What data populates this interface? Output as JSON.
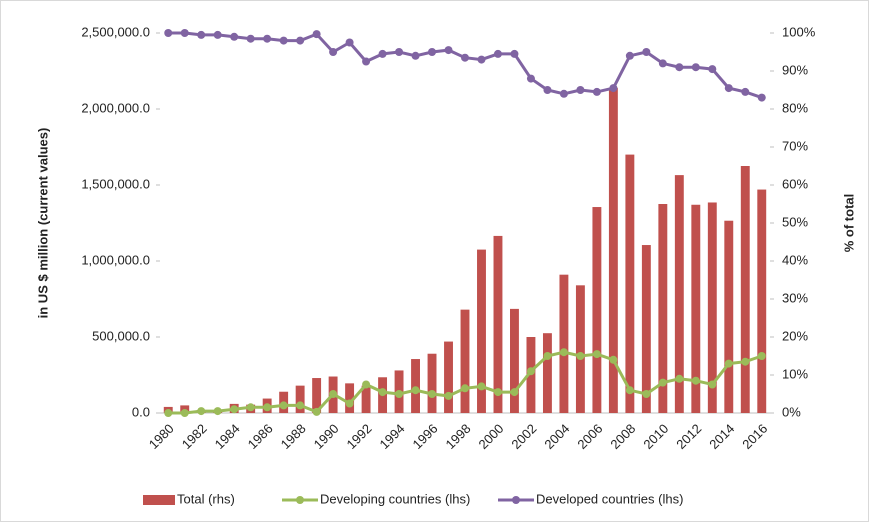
{
  "chart_data": {
    "type": "bar-line",
    "ylabel": "in US $ million (current values)",
    "y2label": "% of total",
    "categories": [
      "1980",
      null,
      "1982",
      null,
      "1984",
      null,
      "1986",
      null,
      "1988",
      null,
      "1990",
      null,
      "1992",
      null,
      "1994",
      null,
      "1996",
      null,
      "1998",
      null,
      "2000",
      null,
      "2002",
      null,
      "2004",
      null,
      "2006",
      null,
      "2008",
      null,
      "2010",
      null,
      "2012",
      null,
      "2014",
      null,
      "2016"
    ],
    "ylim": [
      0,
      2500000
    ],
    "yticks": [
      {
        "value": 0,
        "label": "0.0"
      },
      {
        "value": 500000,
        "label": "500,000.0"
      },
      {
        "value": 1000000,
        "label": "1,000,000.0"
      },
      {
        "value": 1500000,
        "label": "1,500,000.0"
      },
      {
        "value": 2000000,
        "label": "2,000,000.0"
      },
      {
        "value": 2500000,
        "label": "2,500,000.0"
      }
    ],
    "y2lim": [
      0,
      100
    ],
    "y2ticks": [
      {
        "value": 0,
        "label": "0%"
      },
      {
        "value": 10,
        "label": "10%"
      },
      {
        "value": 20,
        "label": "20%"
      },
      {
        "value": 30,
        "label": "30%"
      },
      {
        "value": 40,
        "label": "40%"
      },
      {
        "value": 50,
        "label": "50%"
      },
      {
        "value": 60,
        "label": "60%"
      },
      {
        "value": 70,
        "label": "70%"
      },
      {
        "value": 80,
        "label": "80%"
      },
      {
        "value": 90,
        "label": "90%"
      },
      {
        "value": 100,
        "label": "100%"
      }
    ],
    "legend": "bottom",
    "series": [
      {
        "name": "Total (rhs)",
        "kind": "bar",
        "color": "#c0504d",
        "values": [
          40000,
          50000,
          20000,
          20000,
          60000,
          55000,
          95000,
          140000,
          180000,
          230000,
          240000,
          195000,
          180000,
          235000,
          280000,
          355000,
          390000,
          470000,
          680000,
          1075000,
          1165000,
          685000,
          500000,
          525000,
          910000,
          840000,
          1355000,
          2140000,
          1700000,
          1105000,
          1375000,
          1565000,
          1370000,
          1385000,
          1265000,
          1625000,
          1470000
        ]
      },
      {
        "name": "Developing countries (lhs)",
        "kind": "line",
        "axis": "y2",
        "color": "#9bbb59",
        "values": [
          0,
          0,
          0.5,
          0.5,
          1,
          1.5,
          1.5,
          2,
          2,
          0.3,
          5,
          2.5,
          7.5,
          5.5,
          5,
          6,
          5,
          4.5,
          6.5,
          7,
          5.5,
          5.5,
          11,
          15,
          16,
          15,
          15.5,
          14,
          6,
          5,
          8,
          9,
          8.5,
          7.5,
          13,
          13.5,
          15
        ]
      },
      {
        "name": "Developed countries (lhs)",
        "kind": "line",
        "axis": "y2",
        "color": "#8064a2",
        "values": [
          100,
          100,
          99.5,
          99.5,
          99,
          98.5,
          98.5,
          98,
          98,
          99.7,
          95,
          97.5,
          92.5,
          94.5,
          95,
          94,
          95,
          95.5,
          93.5,
          93,
          94.5,
          94.5,
          88,
          85,
          84,
          85,
          84.5,
          85.5,
          94,
          95,
          92,
          91,
          91,
          90.5,
          85.5,
          84.5,
          83
        ]
      }
    ]
  }
}
